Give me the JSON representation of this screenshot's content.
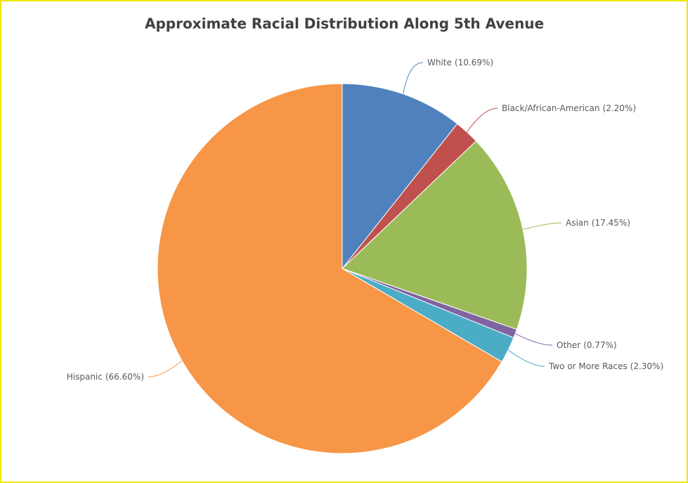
{
  "chart_data": {
    "type": "pie",
    "title": "Approximate Racial Distribution Along 5th Avenue",
    "categories": [
      "White",
      "Black/African-American",
      "Asian",
      "Other",
      "Two or More Races",
      "Hispanic"
    ],
    "values": [
      10.69,
      2.2,
      17.45,
      0.77,
      2.3,
      66.6
    ],
    "value_labels": [
      "(10.69%)",
      "(2.20%)",
      "(17.45%)",
      "(0.77%)",
      "(2.30%)",
      "(66.60%)"
    ],
    "colors": [
      "#4f81bd",
      "#c0504d",
      "#9bbb59",
      "#8064a2",
      "#4bacc6",
      "#f79646"
    ]
  }
}
